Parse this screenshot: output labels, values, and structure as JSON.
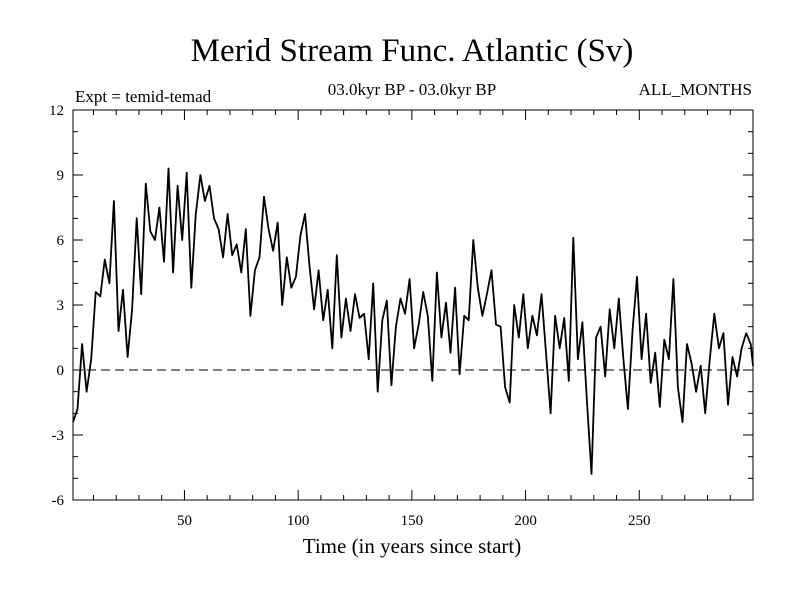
{
  "chart_data": {
    "type": "line",
    "title": "Merid Stream Func. Atlantic (Sv)",
    "subtitle_left": "Expt = temid-temad",
    "subtitle_center": "03.0kyr BP - 03.0kyr BP",
    "subtitle_right": "ALL_MONTHS",
    "xlabel": "Time (in years since start)",
    "ylabel": "",
    "xlim": [
      1,
      300
    ],
    "ylim": [
      -6,
      12
    ],
    "xticks": [
      50,
      100,
      150,
      200,
      250
    ],
    "yticks": [
      -6,
      -3,
      0,
      3,
      6,
      9,
      12
    ],
    "reference_line": 0,
    "series": [
      {
        "name": "Merid Stream Func. Atlantic",
        "x": [
          1,
          3,
          5,
          7,
          9,
          11,
          13,
          15,
          17,
          19,
          21,
          23,
          25,
          27,
          29,
          31,
          33,
          35,
          37,
          39,
          41,
          43,
          45,
          47,
          49,
          51,
          53,
          55,
          57,
          59,
          61,
          63,
          65,
          67,
          69,
          71,
          73,
          75,
          77,
          79,
          81,
          83,
          85,
          87,
          89,
          91,
          93,
          95,
          97,
          99,
          101,
          103,
          105,
          107,
          109,
          111,
          113,
          115,
          117,
          119,
          121,
          123,
          125,
          127,
          129,
          131,
          133,
          135,
          137,
          139,
          141,
          143,
          145,
          147,
          149,
          151,
          153,
          155,
          157,
          159,
          161,
          163,
          165,
          167,
          169,
          171,
          173,
          175,
          177,
          179,
          181,
          183,
          185,
          187,
          189,
          191,
          193,
          195,
          197,
          199,
          201,
          203,
          205,
          207,
          209,
          211,
          213,
          215,
          217,
          219,
          221,
          223,
          225,
          227,
          229,
          231,
          233,
          235,
          237,
          239,
          241,
          243,
          245,
          247,
          249,
          251,
          253,
          255,
          257,
          259,
          261,
          263,
          265,
          267,
          269,
          271,
          273,
          275,
          277,
          279,
          281,
          283,
          285,
          287,
          289,
          291,
          293,
          295,
          297,
          299,
          300
        ],
        "values": [
          -2.4,
          -1.8,
          1.2,
          -1.0,
          0.5,
          3.6,
          3.4,
          5.1,
          4.0,
          7.8,
          1.8,
          3.7,
          0.6,
          2.8,
          7.0,
          3.5,
          8.6,
          6.4,
          6.0,
          7.5,
          5.0,
          9.3,
          4.5,
          8.5,
          6.0,
          9.1,
          3.8,
          7.2,
          9.0,
          7.8,
          8.5,
          7.0,
          6.5,
          5.2,
          7.2,
          5.3,
          5.8,
          4.5,
          6.5,
          2.5,
          4.6,
          5.2,
          8.0,
          6.5,
          5.5,
          6.8,
          3.0,
          5.2,
          3.8,
          4.3,
          6.2,
          7.2,
          4.8,
          2.8,
          4.6,
          2.3,
          3.7,
          1.0,
          5.3,
          1.5,
          3.3,
          1.8,
          3.5,
          2.4,
          2.6,
          0.5,
          4.0,
          -1.0,
          2.3,
          3.2,
          -0.7,
          2.0,
          3.3,
          2.6,
          4.2,
          1.0,
          2.1,
          3.6,
          2.5,
          -0.5,
          4.5,
          1.5,
          3.1,
          0.8,
          3.8,
          -0.2,
          2.5,
          2.3,
          6.0,
          3.8,
          2.5,
          3.5,
          4.6,
          2.1,
          2.0,
          -0.8,
          -1.5,
          3.0,
          1.5,
          3.5,
          1.0,
          2.5,
          1.6,
          3.5,
          0.8,
          -2.0,
          2.5,
          1.0,
          2.4,
          -0.5,
          6.1,
          0.5,
          2.2,
          -1.5,
          -4.8,
          1.5,
          2.0,
          -0.3,
          2.8,
          1.0,
          3.3,
          0.5,
          -1.8,
          1.8,
          4.3,
          0.5,
          2.6,
          -0.6,
          0.8,
          -1.7,
          1.4,
          0.5,
          4.2,
          -0.8,
          -2.4,
          1.2,
          0.3,
          -1.0,
          0.2,
          -2.0,
          0.5,
          2.6,
          1.0,
          1.7,
          -1.6,
          0.6,
          -0.3,
          1.0,
          1.7,
          1.2,
          0.2
        ]
      }
    ]
  }
}
